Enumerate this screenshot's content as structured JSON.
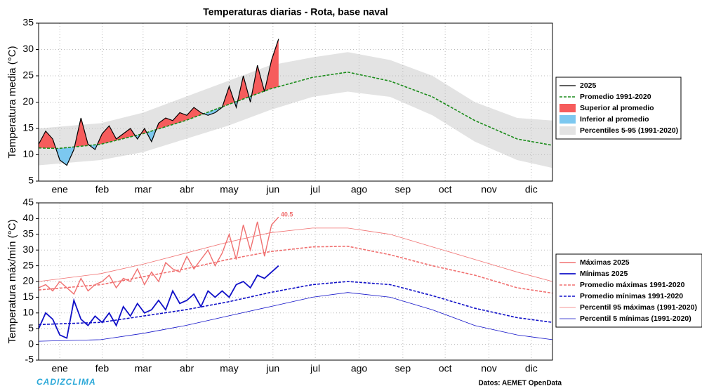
{
  "chart_data": [
    {
      "type": "line",
      "title": "Temperaturas diarias - Rota, base naval",
      "ylabel": "Temperatura media (°C)",
      "xlim": [
        1,
        365
      ],
      "ylim": [
        5,
        35
      ],
      "yticks": [
        5,
        10,
        15,
        20,
        25,
        30,
        35
      ],
      "grid": true,
      "xticks": [
        {
          "value": 16,
          "label": "ene"
        },
        {
          "value": 46,
          "label": "feb"
        },
        {
          "value": 75,
          "label": "mar"
        },
        {
          "value": 106,
          "label": "abr"
        },
        {
          "value": 136,
          "label": "may"
        },
        {
          "value": 167,
          "label": "jun"
        },
        {
          "value": 197,
          "label": "jul"
        },
        {
          "value": 228,
          "label": "ago"
        },
        {
          "value": 259,
          "label": "sep"
        },
        {
          "value": 289,
          "label": "oct"
        },
        {
          "value": 320,
          "label": "nov"
        },
        {
          "value": 350,
          "label": "dic"
        }
      ],
      "series": [
        {
          "name": "2025",
          "color": "#000000",
          "width": 1.2,
          "x": [
            1,
            6,
            11,
            16,
            21,
            26,
            31,
            36,
            41,
            46,
            51,
            56,
            61,
            66,
            71,
            76,
            81,
            86,
            91,
            96,
            101,
            106,
            111,
            116,
            121,
            126,
            131,
            136,
            141,
            146,
            151,
            156,
            161,
            166,
            171
          ],
          "values": [
            12,
            14.5,
            13,
            9,
            8,
            11,
            17,
            12,
            11,
            14,
            15.5,
            13,
            14,
            15,
            13,
            15,
            12.5,
            16,
            17,
            16.5,
            18,
            17.5,
            19,
            18,
            17.5,
            18,
            19,
            23,
            19,
            25,
            20,
            27,
            22,
            28,
            32
          ]
        },
        {
          "name": "Promedio 1991-2020",
          "color": "#1a8c1a",
          "width": 1.6,
          "dash": true,
          "x": [
            1,
            15,
            45,
            75,
            105,
            135,
            165,
            195,
            220,
            250,
            280,
            310,
            340,
            365
          ],
          "values": [
            11.3,
            11.2,
            12,
            14,
            16.5,
            19.5,
            22.5,
            24.7,
            25.7,
            24,
            21,
            16.5,
            13,
            11.8
          ]
        }
      ],
      "fills": [
        {
          "name": "Superior al promedio",
          "color": "#f65c5c"
        },
        {
          "name": "Inferior al promedio",
          "color": "#7cc8f0"
        }
      ],
      "band": {
        "name": "Percentiles 5-95 (1991-2020)",
        "color": "#e3e3e3",
        "x": [
          1,
          45,
          75,
          105,
          135,
          165,
          195,
          220,
          250,
          280,
          310,
          340,
          365
        ],
        "lower": [
          8,
          9,
          10.5,
          13,
          15.5,
          18.5,
          21,
          22,
          21,
          17.5,
          12.5,
          9,
          7.5
        ],
        "upper": [
          15,
          16,
          18,
          21,
          24,
          27,
          28.5,
          29.5,
          28,
          25,
          20,
          17,
          16.5
        ]
      }
    },
    {
      "type": "line",
      "ylabel": "Temperatura máx/mín (°C)",
      "xlim": [
        1,
        365
      ],
      "ylim": [
        -5,
        45
      ],
      "yticks": [
        -5,
        0,
        5,
        10,
        15,
        20,
        25,
        30,
        35,
        40,
        45
      ],
      "grid": true,
      "xticks": [
        {
          "value": 16,
          "label": "ene"
        },
        {
          "value": 46,
          "label": "feb"
        },
        {
          "value": 75,
          "label": "mar"
        },
        {
          "value": 106,
          "label": "abr"
        },
        {
          "value": 136,
          "label": "may"
        },
        {
          "value": 167,
          "label": "jun"
        },
        {
          "value": 197,
          "label": "jul"
        },
        {
          "value": 228,
          "label": "ago"
        },
        {
          "value": 259,
          "label": "sep"
        },
        {
          "value": 289,
          "label": "oct"
        },
        {
          "value": 320,
          "label": "nov"
        },
        {
          "value": 350,
          "label": "dic"
        }
      ],
      "series": [
        {
          "name": "Máximas 2025",
          "color": "#f07070",
          "width": 1.4,
          "x": [
            1,
            6,
            11,
            16,
            21,
            26,
            31,
            36,
            41,
            46,
            51,
            56,
            61,
            66,
            71,
            76,
            81,
            86,
            91,
            96,
            101,
            106,
            111,
            116,
            121,
            126,
            131,
            136,
            141,
            146,
            151,
            156,
            161,
            166,
            171
          ],
          "values": [
            18,
            19,
            17,
            20,
            18,
            16,
            21,
            17,
            19,
            20,
            22,
            18,
            21,
            20,
            24,
            19,
            23,
            20,
            26,
            24,
            23,
            28,
            24,
            27,
            30,
            25,
            29,
            35,
            27,
            38,
            30,
            39,
            28,
            38,
            40.5
          ]
        },
        {
          "name": "Mínimas 2025",
          "color": "#1010c8",
          "width": 1.8,
          "x": [
            1,
            6,
            11,
            16,
            21,
            26,
            31,
            36,
            41,
            46,
            51,
            56,
            61,
            66,
            71,
            76,
            81,
            86,
            91,
            96,
            101,
            106,
            111,
            116,
            121,
            126,
            131,
            136,
            141,
            146,
            151,
            156,
            161,
            166,
            171
          ],
          "values": [
            5,
            10,
            8,
            3,
            2,
            14,
            8,
            6,
            9,
            7,
            10,
            6,
            12,
            9,
            13,
            10,
            11,
            14,
            11,
            17,
            13,
            14,
            16,
            12,
            17,
            15,
            17,
            15,
            19,
            20,
            18,
            22,
            21,
            23,
            25
          ]
        },
        {
          "name": "Promedio máximas 1991-2020",
          "color": "#f07070",
          "width": 1.6,
          "dash": true,
          "x": [
            1,
            45,
            75,
            105,
            135,
            165,
            195,
            220,
            250,
            280,
            310,
            340,
            365
          ],
          "values": [
            17.3,
            19,
            21.5,
            24,
            27,
            29.5,
            31,
            31.2,
            28.5,
            25,
            22,
            18,
            16.3
          ]
        },
        {
          "name": "Promedio mínimas 1991-2020",
          "color": "#1010c8",
          "width": 1.6,
          "dash": true,
          "x": [
            1,
            45,
            75,
            105,
            135,
            165,
            195,
            220,
            250,
            280,
            310,
            340,
            365
          ],
          "values": [
            6.3,
            7,
            9,
            11,
            13.5,
            16.5,
            19,
            20,
            19,
            15.5,
            11.5,
            8.5,
            7
          ]
        },
        {
          "name": "Percentil 95 máximas (1991-2020)",
          "color": "#f07070",
          "width": 0.8,
          "x": [
            1,
            45,
            75,
            105,
            135,
            165,
            195,
            220,
            250,
            280,
            310,
            340,
            365
          ],
          "values": [
            20,
            22.5,
            25.5,
            29,
            32.5,
            35.5,
            37,
            37,
            35,
            31,
            27,
            23,
            20
          ]
        },
        {
          "name": "Percentil 5 mínimas (1991-2020)",
          "color": "#1010c8",
          "width": 0.8,
          "x": [
            1,
            45,
            75,
            105,
            135,
            165,
            195,
            220,
            250,
            280,
            310,
            340,
            365
          ],
          "values": [
            1,
            1.5,
            3.5,
            6,
            9,
            12,
            15,
            16.5,
            15,
            11,
            6,
            3,
            1.5
          ]
        }
      ]
    }
  ],
  "footer": {
    "brand": "CADIZCLIMA",
    "source": "Datos: AEMET OpenData"
  }
}
